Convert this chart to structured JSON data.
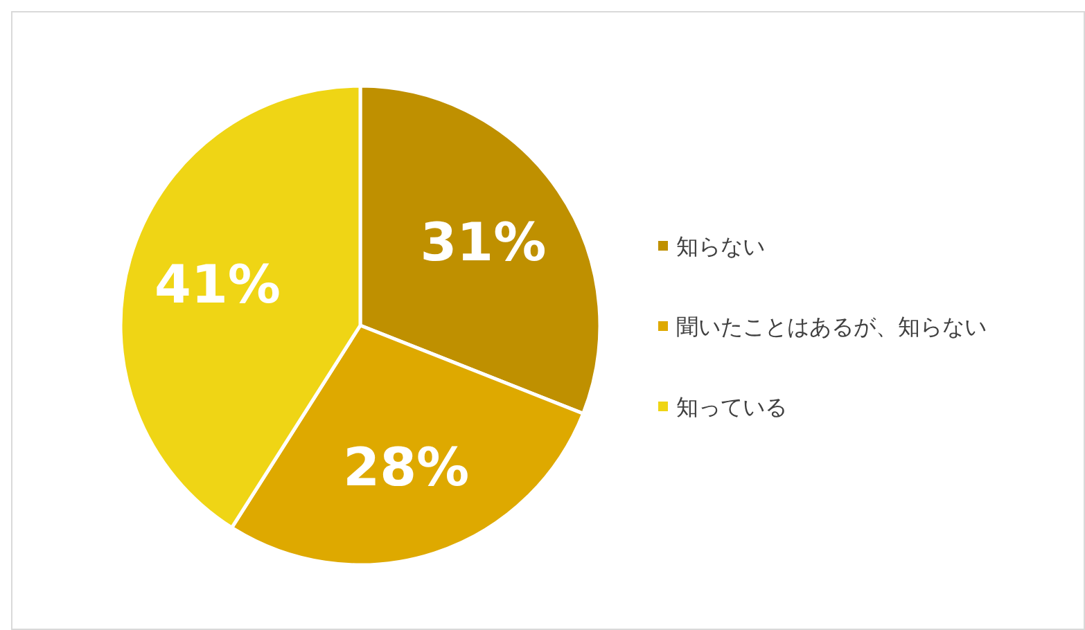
{
  "chart_data": {
    "type": "pie",
    "categories": [
      "知らない",
      "聞いたことはあるが、知らない",
      "知っている"
    ],
    "values": [
      31,
      28,
      41
    ],
    "colors": [
      "#bf9000",
      "#dea900",
      "#efd515"
    ],
    "value_labels": [
      "31%",
      "28%",
      "41%"
    ],
    "legend": "right"
  }
}
